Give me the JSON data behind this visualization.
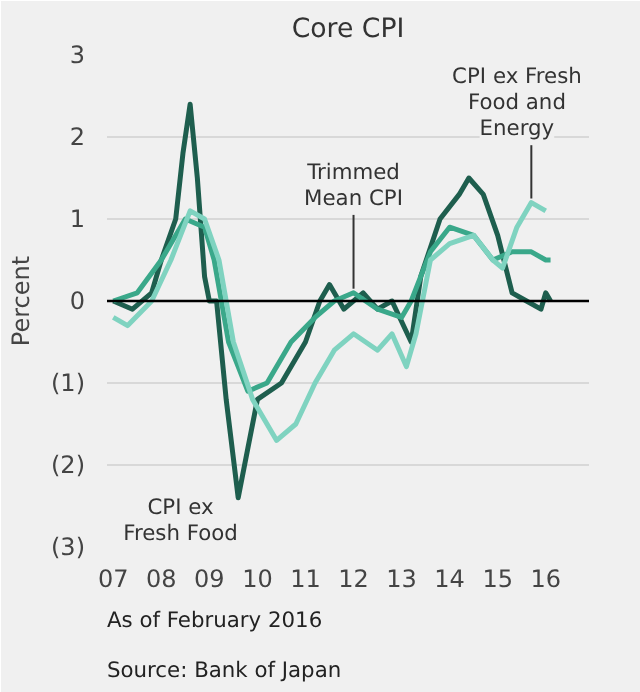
{
  "chart_data": {
    "type": "line",
    "title": "Core CPI",
    "ylabel": "Percent",
    "xlim": [
      2006.87,
      2016.9
    ],
    "ylim": [
      -3,
      3
    ],
    "xticks": [
      {
        "value": 2007,
        "label": "07"
      },
      {
        "value": 2008,
        "label": "08"
      },
      {
        "value": 2009,
        "label": "09"
      },
      {
        "value": 2010,
        "label": "10"
      },
      {
        "value": 2011,
        "label": "11"
      },
      {
        "value": 2012,
        "label": "12"
      },
      {
        "value": 2013,
        "label": "13"
      },
      {
        "value": 2014,
        "label": "14"
      },
      {
        "value": 2015,
        "label": "15"
      },
      {
        "value": 2016,
        "label": "16"
      }
    ],
    "yticks": [
      {
        "value": -3,
        "label": "(3)"
      },
      {
        "value": -2,
        "label": "(2)"
      },
      {
        "value": -1,
        "label": "(1)"
      },
      0,
      1,
      2,
      3
    ],
    "grid": "y",
    "ref_lines": [
      {
        "axis": "y",
        "value": 0,
        "color": "#000000"
      }
    ],
    "series": [
      {
        "name": "CPI ex Fresh Food",
        "color": "#1e5e4e",
        "x": [
          2007,
          2007.4,
          2007.8,
          2008.0,
          2008.3,
          2008.45,
          2008.6,
          2008.75,
          2008.9,
          2009.0,
          2009.15,
          2009.35,
          2009.6,
          2009.8,
          2010.0,
          2010.5,
          2011.0,
          2011.3,
          2011.5,
          2011.8,
          2012.2,
          2012.5,
          2012.8,
          2013.2,
          2013.4,
          2013.8,
          2014.2,
          2014.4,
          2014.7,
          2015.0,
          2015.3,
          2015.6,
          2015.9,
          2016.0,
          2016.1
        ],
        "values": [
          0.0,
          -0.1,
          0.1,
          0.5,
          1.0,
          1.8,
          2.4,
          1.5,
          0.3,
          0.0,
          0.0,
          -1.2,
          -2.4,
          -1.8,
          -1.2,
          -1.0,
          -0.5,
          0.0,
          0.2,
          -0.1,
          0.1,
          -0.1,
          0.0,
          -0.5,
          0.3,
          1.0,
          1.3,
          1.5,
          1.3,
          0.8,
          0.1,
          0.0,
          -0.1,
          0.1,
          0.0
        ]
      },
      {
        "name": "Trimmed Mean CPI",
        "color": "#3aa88a",
        "x": [
          2007,
          2007.5,
          2008.0,
          2008.5,
          2008.9,
          2009.1,
          2009.4,
          2009.8,
          2010.2,
          2010.7,
          2011.2,
          2011.6,
          2012.0,
          2012.5,
          2013.0,
          2013.2,
          2013.6,
          2014.0,
          2014.5,
          2014.9,
          2015.3,
          2015.7,
          2016.0,
          2016.1
        ],
        "values": [
          0.0,
          0.1,
          0.5,
          1.0,
          0.9,
          0.5,
          -0.5,
          -1.1,
          -1.0,
          -0.5,
          -0.2,
          0.0,
          0.1,
          -0.1,
          -0.2,
          0.0,
          0.6,
          0.9,
          0.8,
          0.5,
          0.6,
          0.6,
          0.5,
          0.5
        ]
      },
      {
        "name": "CPI ex Fresh Food and Energy",
        "color": "#7fd3c0",
        "x": [
          2007,
          2007.3,
          2007.8,
          2008.2,
          2008.6,
          2008.9,
          2009.2,
          2009.5,
          2009.9,
          2010.4,
          2010.8,
          2011.2,
          2011.6,
          2012.0,
          2012.5,
          2012.8,
          2013.1,
          2013.3,
          2013.6,
          2014.0,
          2014.5,
          2014.9,
          2015.1,
          2015.4,
          2015.7,
          2016.0
        ],
        "values": [
          -0.2,
          -0.3,
          0.0,
          0.5,
          1.1,
          1.0,
          0.5,
          -0.5,
          -1.2,
          -1.7,
          -1.5,
          -1.0,
          -0.6,
          -0.4,
          -0.6,
          -0.4,
          -0.8,
          -0.4,
          0.5,
          0.7,
          0.8,
          0.5,
          0.4,
          0.9,
          1.2,
          1.1
        ]
      }
    ],
    "annotations": [
      "As of February 2016",
      "Source: Bank of Japan"
    ]
  }
}
